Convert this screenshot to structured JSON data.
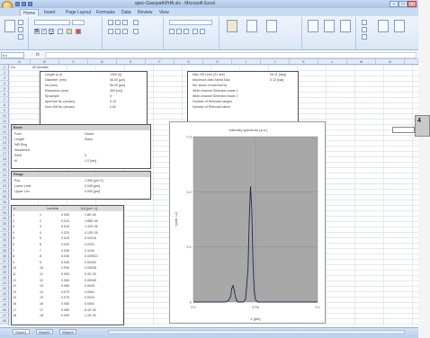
{
  "window": {
    "title": "spec-GasspathPrfA.xls - Microsoft Excel"
  },
  "ribbon": {
    "tabs": [
      "Home",
      "Insert",
      "Page Layout",
      "Formulas",
      "Data",
      "Review",
      "View"
    ],
    "active_tab": 0
  },
  "formula_bar": {
    "name_box": "K4",
    "fx": "fx",
    "content": ""
  },
  "grid": {
    "columns": [
      "A",
      "B",
      "C",
      "D",
      "E",
      "F",
      "G",
      "H",
      "I",
      "J",
      "K",
      "L",
      "M",
      "N",
      "O"
    ],
    "row_numbers": [
      "1",
      "2",
      "3",
      "4",
      "5",
      "6",
      "7",
      "8",
      "9",
      "10",
      "11",
      "12",
      "13",
      "14",
      "15",
      "16",
      "17",
      "18",
      "19",
      "20",
      "21",
      "22",
      "23",
      "24",
      "25",
      "26",
      "27",
      "28",
      "29",
      "30",
      "31",
      "32",
      "33",
      "34",
      "35",
      "36",
      "37",
      "38",
      "39",
      "40",
      "41",
      "42",
      "43",
      "44",
      "45",
      "46",
      "47",
      "48"
    ]
  },
  "sheet": {
    "cell_a2": "Ga",
    "cell_b2": "A0 ssmabe",
    "left_params": [
      {
        "label": "Length (u.a)",
        "value": "1300 [u]"
      },
      {
        "label": "Diameter (mm)",
        "value": "46.00 [µm]"
      },
      {
        "label": "Nd (mm)",
        "value": "50.00 [µm]"
      },
      {
        "label": "Resolution (mm)",
        "value": "300 [nm]"
      },
      {
        "label": "Nj sample",
        "value": "5"
      },
      {
        "label": "Aperture Nu (arcsec)",
        "value": "0.15"
      },
      {
        "label": "Num Diff Nu (arcsec)",
        "value": "0.52"
      }
    ],
    "right_params": [
      {
        "label": "Max OD Lens (Z1 sm/)",
        "value": "25.11 [deg]"
      },
      {
        "label": "Maximum ratio Sbeta Max",
        "value": "0.12 [rad]"
      },
      {
        "label": "Nb. slices of Ave/Ga/Ga",
        "value": ""
      },
      {
        "label": "Wide channel Selection mode 1",
        "value": ""
      },
      {
        "label": "Wide channel Selection mode 2",
        "value": ""
      },
      {
        "label": "Number of Relevant ranges",
        "value": ""
      },
      {
        "label": "Number of Relevant slices",
        "value": ""
      }
    ],
    "beam_block": {
      "title": "Beam",
      "rows": [
        {
          "label": "Form",
          "value": "Gauss"
        },
        {
          "label": "Length",
          "value": "Stack"
        },
        {
          "label": "WB Ring",
          "value": ""
        },
        {
          "label": "Noncentral",
          "value": ""
        },
        {
          "label": "RMS",
          "value": "3"
        },
        {
          "label": "Kt",
          "value": "1.0 [nm]"
        }
      ]
    },
    "range_block": {
      "title": "Range",
      "rows": [
        {
          "label": "Pos",
          "value": "1.069 [µm^1]"
        },
        {
          "label": "Lower Limit",
          "value": "0.045 [µm]"
        },
        {
          "label": "Upper Lim",
          "value": "0.090 [µm]"
        }
      ]
    },
    "table": {
      "headers": [
        "n",
        "Lambda",
        "I(λ) [µm^-1]"
      ],
      "rows": [
        [
          "1",
          "1",
          "0.005",
          "1.6E-06"
        ],
        [
          "2",
          "2",
          "0.010",
          "3.88E-06"
        ],
        [
          "3",
          "3",
          "0.015",
          "1.42E-05"
        ],
        [
          "4",
          "4",
          "0.020",
          "4.12E-05"
        ],
        [
          "5",
          "5",
          "0.025",
          "0.00016"
        ],
        [
          "6",
          "6",
          "0.030",
          "0.2221"
        ],
        [
          "7",
          "7",
          "0.035",
          "0.1106"
        ],
        [
          "8",
          "8",
          "0.040",
          "0.029521"
        ],
        [
          "9",
          "9",
          "0.045",
          "0.00432"
        ],
        [
          "10",
          "10",
          "0.050",
          "0.00028"
        ],
        [
          "11",
          "11",
          "0.055",
          "5.1E-05"
        ],
        [
          "12",
          "12",
          "0.060",
          "0.00045"
        ],
        [
          "13",
          "13",
          "0.065",
          "0.0035"
        ],
        [
          "14",
          "14",
          "0.070",
          "0.0061"
        ],
        [
          "15",
          "15",
          "0.075",
          "0.0010"
        ],
        [
          "16",
          "16",
          "0.080",
          "0.0002"
        ],
        [
          "17",
          "17",
          "0.085",
          "8.1E-05"
        ],
        [
          "18",
          "18",
          "0.090",
          "1.1E-05"
        ]
      ]
    }
  },
  "chart_data": {
    "type": "line",
    "title": "Intensity spectrum (a.u.)",
    "xlabel": "λ [µm]",
    "ylabel": "I [arb. u.]",
    "xlim": [
      0,
      0.1
    ],
    "ylim": [
      0,
      0.3
    ],
    "x_ticks": [
      "0.0",
      "0.05",
      "0.1"
    ],
    "y_ticks": [
      "0",
      "0.1",
      "0.2",
      "0.3"
    ],
    "grid": true,
    "background": "#a8a8a8",
    "line_color": "#1a2a4a",
    "x": [
      0.0,
      0.01,
      0.02,
      0.025,
      0.028,
      0.03,
      0.031,
      0.032,
      0.033,
      0.034,
      0.035,
      0.036,
      0.038,
      0.04,
      0.042,
      0.044,
      0.045,
      0.046,
      0.047,
      0.048,
      0.049,
      0.05,
      0.052,
      0.055,
      0.06,
      0.07,
      0.08,
      0.09,
      0.1
    ],
    "y": [
      0.0,
      0.0,
      0.0,
      0.0,
      0.002,
      0.01,
      0.025,
      0.03,
      0.02,
      0.008,
      0.002,
      0.0,
      0.0,
      0.0,
      0.005,
      0.06,
      0.15,
      0.21,
      0.17,
      0.07,
      0.02,
      0.004,
      0.0,
      0.0,
      0.0,
      0.0,
      0.0,
      0.0,
      0.0
    ]
  },
  "status_bar": {
    "sheets": [
      "Sheet1",
      "Sheet2",
      "Sheet3"
    ]
  },
  "right_strip": {
    "tab_label": "4"
  }
}
